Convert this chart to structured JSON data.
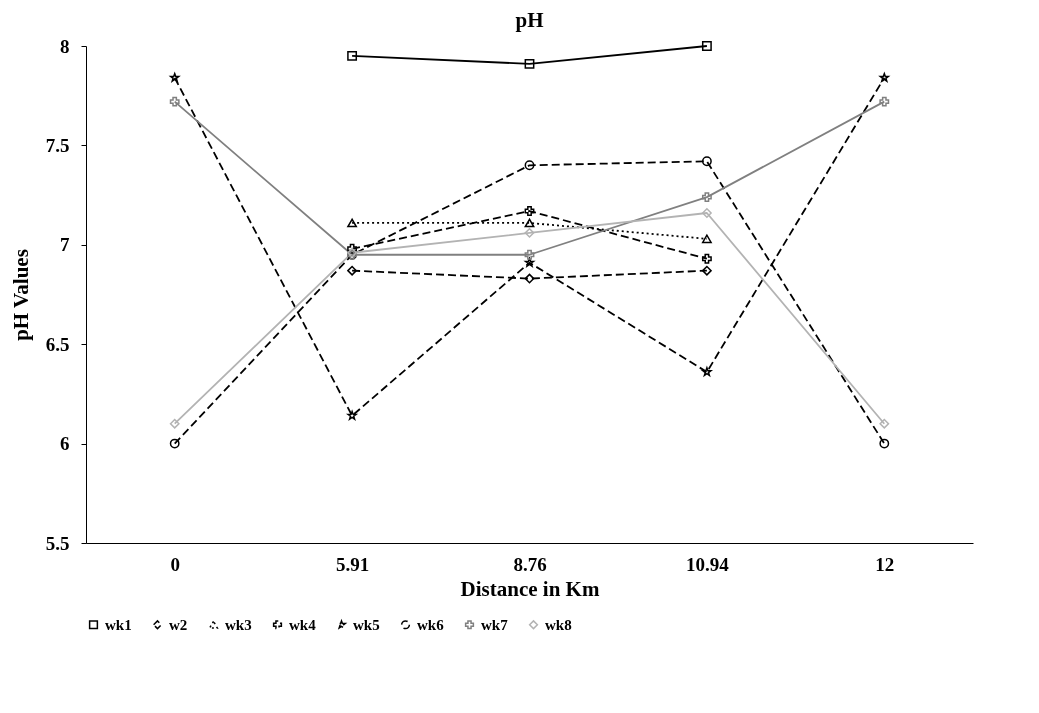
{
  "chart_data": {
    "type": "line",
    "title": "pH",
    "xlabel": "Distance in Km",
    "ylabel": "pH Values",
    "categories": [
      "0",
      "5.91",
      "8.76",
      "10.94",
      "12"
    ],
    "ylim": [
      5.5,
      8
    ],
    "yticks": [
      5.5,
      6,
      6.5,
      7,
      7.5,
      8
    ],
    "grid": false,
    "legend": "bottom",
    "series": [
      {
        "name": "wk1",
        "color": "#000000",
        "marker": "square",
        "line_style": "solid",
        "values": [
          null,
          7.95,
          7.91,
          8.0,
          null
        ]
      },
      {
        "name": "w2",
        "color": "#000000",
        "marker": "diamond",
        "line_style": "dashed",
        "values": [
          null,
          6.87,
          6.83,
          6.87,
          null
        ]
      },
      {
        "name": "wk3",
        "color": "#000000",
        "marker": "triangle",
        "line_style": "dotted",
        "values": [
          null,
          7.11,
          7.11,
          7.03,
          null
        ]
      },
      {
        "name": "wk4",
        "color": "#000000",
        "marker": "cross",
        "line_style": "dashed",
        "values": [
          null,
          6.98,
          7.17,
          6.93,
          null
        ]
      },
      {
        "name": "wk5",
        "color": "#000000",
        "marker": "star",
        "line_style": "dashed",
        "values": [
          7.84,
          6.14,
          6.91,
          6.36,
          7.84
        ]
      },
      {
        "name": "wk6",
        "color": "#000000",
        "marker": "circle",
        "line_style": "dashed",
        "values": [
          6.0,
          6.95,
          7.4,
          7.42,
          6.0
        ]
      },
      {
        "name": "wk7",
        "color": "#808080",
        "marker": "cross",
        "line_style": "solid",
        "values": [
          7.72,
          6.95,
          6.95,
          7.24,
          7.72
        ]
      },
      {
        "name": "wk8",
        "color": "#b3b3b3",
        "marker": "diamond",
        "line_style": "solid",
        "values": [
          6.1,
          6.96,
          7.06,
          7.16,
          6.1
        ]
      }
    ]
  }
}
